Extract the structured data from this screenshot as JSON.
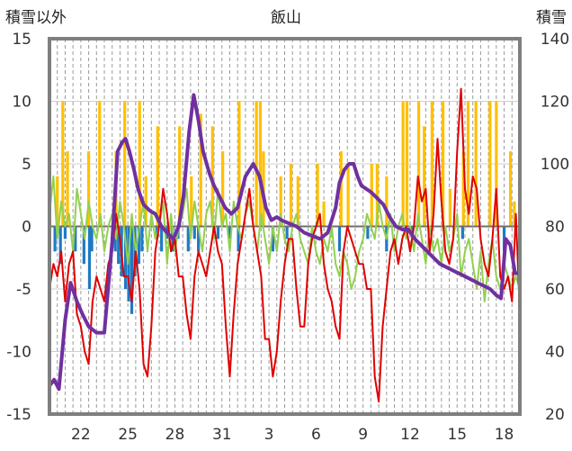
{
  "chart_data": {
    "type": "line",
    "title": "飯山",
    "left_axis_title": "積雪以外",
    "right_axis_title": "積雪",
    "ylim_left": [
      -15,
      15
    ],
    "yticks_left": [
      "15",
      "10",
      "5",
      "0",
      "-5",
      "-10",
      "-15"
    ],
    "ylim_right": [
      20,
      140
    ],
    "yticks_right": [
      "140",
      "120",
      "100",
      "80",
      "60",
      "40",
      "20"
    ],
    "xlim": [
      0,
      60
    ],
    "xtick_labels": [
      "22",
      "25",
      "28",
      "31",
      "3",
      "6",
      "9",
      "12",
      "15",
      "18"
    ],
    "xtick_positions": [
      4,
      10,
      16,
      22,
      28,
      34,
      40,
      46,
      52,
      58
    ],
    "grid": true,
    "series": [
      {
        "key": "snow_depth",
        "axis": "right",
        "style": "line",
        "color": "#7030a0",
        "x": [
          0.0,
          0.6,
          1.2,
          2.0,
          2.7,
          3.5,
          4.2,
          5.0,
          6.0,
          7.0,
          8.0,
          8.7,
          9.3,
          9.7,
          10.2,
          10.8,
          11.3,
          12.0,
          12.8,
          13.5,
          14.3,
          15.0,
          15.8,
          16.5,
          17.1,
          17.8,
          18.4,
          19.0,
          19.6,
          20.4,
          21.0,
          21.6,
          22.4,
          23.2,
          24.0,
          25.0,
          26.0,
          26.8,
          27.6,
          28.3,
          29.0,
          29.6,
          30.5,
          31.5,
          32.5,
          33.5,
          34.5,
          35.5,
          36.5,
          37.0,
          37.6,
          38.2,
          38.8,
          39.3,
          39.8,
          40.4,
          41.0,
          41.8,
          42.6,
          43.4,
          44.2,
          45.0,
          45.8,
          46.6,
          47.4,
          48.2,
          49.0,
          49.8,
          50.6,
          51.4,
          52.2,
          53.0,
          53.8,
          54.6,
          55.4,
          56.2,
          57.0,
          57.6,
          58.2,
          58.8,
          59.4,
          60.0
        ],
        "y": [
          29,
          31,
          28,
          50,
          62,
          56,
          52,
          48,
          46,
          46,
          75,
          104,
          107,
          108,
          104,
          98,
          92,
          87,
          85,
          84,
          80,
          78,
          76,
          80,
          90,
          110,
          122,
          114,
          104,
          97,
          93,
          90,
          86,
          84,
          86,
          96,
          100,
          96,
          86,
          82,
          83,
          82,
          81,
          80,
          78,
          77,
          76,
          78,
          86,
          94,
          98,
          100,
          100,
          96,
          93,
          92,
          91,
          89,
          87,
          83,
          80,
          79,
          79,
          76,
          74,
          72,
          70,
          68,
          67,
          66,
          65,
          64,
          63,
          62,
          61,
          60,
          58,
          57,
          76,
          74,
          65,
          65
        ]
      },
      {
        "key": "series_red",
        "axis": "left",
        "style": "line",
        "color": "#e00000",
        "x": [
          0.0,
          0.5,
          1.0,
          1.5,
          2.0,
          2.5,
          3.0,
          3.5,
          4.0,
          4.5,
          5.0,
          5.5,
          6.0,
          6.5,
          7.0,
          7.5,
          8.0,
          8.5,
          9.0,
          9.5,
          10.0,
          10.5,
          11.0,
          11.5,
          12.0,
          12.5,
          13.0,
          13.5,
          14.0,
          14.5,
          15.0,
          15.5,
          16.0,
          16.5,
          17.0,
          17.5,
          18.0,
          18.5,
          19.0,
          19.5,
          20.0,
          20.5,
          21.0,
          21.5,
          22.0,
          22.5,
          23.0,
          23.5,
          24.0,
          24.5,
          25.0,
          25.5,
          26.0,
          26.5,
          27.0,
          27.5,
          28.0,
          28.5,
          29.0,
          29.5,
          30.0,
          30.5,
          31.0,
          31.5,
          32.0,
          32.5,
          33.0,
          33.5,
          34.0,
          34.5,
          35.0,
          35.5,
          36.0,
          36.5,
          37.0,
          37.5,
          38.0,
          38.5,
          39.0,
          39.5,
          40.0,
          40.5,
          41.0,
          41.5,
          42.0,
          42.5,
          43.0,
          43.5,
          44.0,
          44.5,
          45.0,
          45.5,
          46.0,
          46.5,
          47.0,
          47.5,
          48.0,
          48.5,
          49.0,
          49.5,
          50.0,
          50.5,
          51.0,
          51.5,
          52.0,
          52.5,
          53.0,
          53.5,
          54.0,
          54.5,
          55.0,
          55.5,
          56.0,
          56.5,
          57.0,
          57.5,
          58.0,
          58.5,
          59.0,
          59.5,
          60.0
        ],
        "y": [
          -5,
          -3,
          -4,
          -2,
          -6,
          -3,
          -2,
          -7,
          -8,
          -10,
          -11,
          -6,
          -4,
          -5,
          -6,
          -3,
          -2,
          1,
          -1,
          -4,
          -4,
          -6,
          -2,
          -5,
          -11,
          -12,
          -8,
          -2,
          0,
          3,
          1,
          -2,
          -1,
          -4,
          -4,
          -7,
          -9,
          -4,
          -2,
          -3,
          -4,
          -2,
          0,
          -2,
          -3,
          -8,
          -12,
          -7,
          -3,
          -1,
          1,
          3,
          0,
          -2,
          -4,
          -9,
          -9,
          -12,
          -10,
          -6,
          -3,
          -1,
          -1,
          -5,
          -8,
          -8,
          -3,
          -1,
          0,
          1,
          -3,
          -5,
          -6,
          -8,
          -9,
          -2,
          0,
          -1,
          -2,
          -3,
          -3,
          -5,
          -5,
          -12,
          -14,
          -8,
          -5,
          -2,
          -1,
          -3,
          -1,
          0,
          -2,
          0,
          4,
          2,
          3,
          -2,
          1,
          7,
          2,
          -2,
          -3,
          -1,
          6,
          11,
          3,
          1,
          4,
          3,
          -1,
          -3,
          -4,
          -1,
          3,
          -4,
          -5,
          -4,
          -6,
          1,
          -7
        ]
      },
      {
        "key": "series_green",
        "axis": "left",
        "style": "line",
        "color": "#92d050",
        "x": [
          0.0,
          0.5,
          1.0,
          1.5,
          2.0,
          2.5,
          3.0,
          3.5,
          4.0,
          4.5,
          5.0,
          5.5,
          6.0,
          6.5,
          7.0,
          7.5,
          8.0,
          8.5,
          9.0,
          9.5,
          10.0,
          10.5,
          11.0,
          11.5,
          12.0,
          12.5,
          13.0,
          13.5,
          14.0,
          14.5,
          15.0,
          15.5,
          16.0,
          16.5,
          17.0,
          17.5,
          18.0,
          18.5,
          19.0,
          19.5,
          20.0,
          20.5,
          21.0,
          21.5,
          22.0,
          22.5,
          23.0,
          23.5,
          24.0,
          24.5,
          25.0,
          25.5,
          26.0,
          26.5,
          27.0,
          27.5,
          28.0,
          28.5,
          29.0,
          29.5,
          30.0,
          30.5,
          31.0,
          31.5,
          32.0,
          32.5,
          33.0,
          33.5,
          34.0,
          34.5,
          35.0,
          35.5,
          36.0,
          36.5,
          37.0,
          37.5,
          38.0,
          38.5,
          39.0,
          39.5,
          40.0,
          40.5,
          41.0,
          41.5,
          42.0,
          42.5,
          43.0,
          43.5,
          44.0,
          44.5,
          45.0,
          45.5,
          46.0,
          46.5,
          47.0,
          47.5,
          48.0,
          48.5,
          49.0,
          49.5,
          50.0,
          50.5,
          51.0,
          51.5,
          52.0,
          52.5,
          53.0,
          53.5,
          54.0,
          54.5,
          55.0,
          55.5,
          56.0,
          56.5,
          57.0,
          57.5,
          58.0,
          58.5,
          59.0,
          59.5,
          60.0
        ],
        "y": [
          1,
          4,
          -1,
          2,
          0,
          1,
          -2,
          3,
          1,
          -1,
          2,
          0,
          -1,
          1,
          -2,
          0,
          1,
          -1,
          2,
          0,
          -3,
          1,
          -2,
          0,
          2,
          -2,
          1,
          -1,
          0,
          2,
          -3,
          1,
          -2,
          0,
          1,
          3,
          -1,
          2,
          0,
          -2,
          1,
          2,
          -1,
          3,
          0,
          1,
          -2,
          2,
          0,
          -1,
          1,
          2,
          0,
          -2,
          1,
          -1,
          -3,
          0,
          -2,
          1,
          -1,
          -2,
          0,
          1,
          -1,
          -2,
          -3,
          0,
          -2,
          -3,
          -1,
          -2,
          0,
          -3,
          -4,
          -2,
          -3,
          -5,
          -4,
          -2,
          -1,
          1,
          0,
          -1,
          2,
          0,
          -1,
          1,
          -2,
          0,
          1,
          -1,
          0,
          -2,
          1,
          -1,
          -3,
          0,
          -2,
          -1,
          -3,
          0,
          -2,
          -1,
          1,
          -4,
          -2,
          -1,
          -3,
          -5,
          -2,
          -6,
          -3,
          -1,
          -4,
          -5,
          -3,
          -4,
          -5,
          -4,
          -5
        ]
      },
      {
        "key": "series_orange",
        "axis": "left",
        "style": "bar",
        "color": "#ffc000",
        "x": [
          1.0,
          1.7,
          2.3,
          5.0,
          6.4,
          8.5,
          9.6,
          11.5,
          12.3,
          13.8,
          16.6,
          18.1,
          19.3,
          20.8,
          22.1,
          24.2,
          26.4,
          26.9,
          27.3,
          29.5,
          30.8,
          31.7,
          34.2,
          35.0,
          37.2,
          38.1,
          41.1,
          41.8,
          43.0,
          45.1,
          45.6,
          47.1,
          47.8,
          48.8,
          50.2,
          51.1,
          52.8,
          53.4,
          54.4,
          56.2,
          57.0,
          58.8,
          59.3
        ],
        "y": [
          4,
          10,
          6,
          6,
          10,
          6,
          10,
          10,
          4,
          8,
          8,
          4,
          9,
          8,
          6,
          10,
          10,
          10,
          6,
          4,
          5,
          4,
          5,
          2,
          6,
          5,
          5,
          5,
          4,
          10,
          10,
          10,
          8,
          10,
          10,
          3,
          6,
          10,
          10,
          10,
          10,
          6,
          2
        ]
      },
      {
        "key": "series_blue",
        "axis": "left",
        "style": "bar",
        "color": "#1f7ac4",
        "x": [
          0.7,
          1.4,
          2.0,
          3.3,
          4.4,
          5.1,
          5.4,
          8.4,
          8.8,
          9.2,
          9.7,
          10.1,
          10.5,
          10.9,
          11.4,
          11.8,
          13.7,
          14.3,
          15.0,
          15.7,
          16.4,
          17.7,
          18.5,
          19.0,
          21.5,
          23.0,
          24.1,
          28.5,
          30.3,
          37.0,
          40.6,
          43.0,
          46.3,
          52.7,
          58.0
        ],
        "y": [
          -2,
          -3,
          -1,
          -2,
          -3,
          -5,
          -2,
          -2,
          -3,
          -4,
          -5,
          -6,
          -7,
          -4,
          -3,
          -2,
          -1,
          -2,
          -1,
          -2,
          -1,
          -2,
          -1,
          -2,
          -1,
          -1,
          -2,
          -2,
          -1,
          -2,
          -1,
          -2,
          -1,
          -1,
          -2
        ]
      }
    ]
  }
}
